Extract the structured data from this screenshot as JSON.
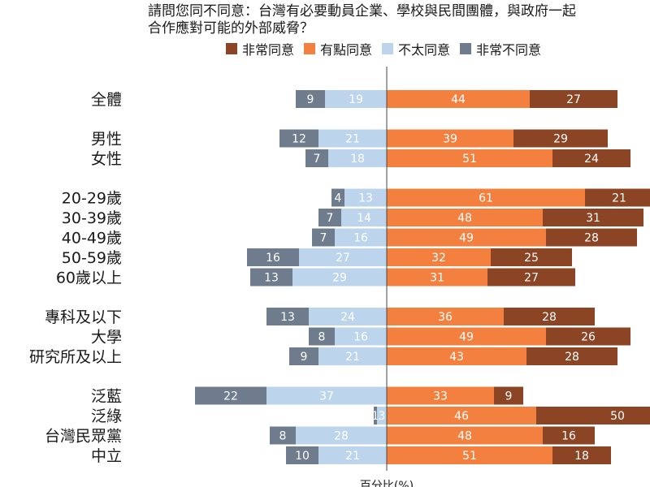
{
  "title_lines": [
    "請問您同不同意：台灣有必要動員企業、學校與民間團體，與政府一起",
    "合作應對可能的外部威脅？"
  ],
  "chart_data": {
    "type": "bar",
    "orientation": "horizontal-diverging",
    "xlabel": "百分比(%)",
    "legend": [
      {
        "name": "非常同意",
        "color": "#8c4524"
      },
      {
        "name": "有點同意",
        "color": "#f4803f"
      },
      {
        "name": "不太同意",
        "color": "#bcd4ec"
      },
      {
        "name": "非常不同意",
        "color": "#6e7c8e"
      }
    ],
    "groups": [
      {
        "rows": [
          {
            "label": "全體",
            "strong_disagree": 9,
            "disagree": 19,
            "agree": 44,
            "strong_agree": 27
          }
        ]
      },
      {
        "rows": [
          {
            "label": "男性",
            "strong_disagree": 12,
            "disagree": 21,
            "agree": 39,
            "strong_agree": 29
          },
          {
            "label": "女性",
            "strong_disagree": 7,
            "disagree": 18,
            "agree": 51,
            "strong_agree": 24
          }
        ]
      },
      {
        "rows": [
          {
            "label": "20-29歲",
            "strong_disagree": 4,
            "disagree": 13,
            "agree": 61,
            "strong_agree": 21
          },
          {
            "label": "30-39歲",
            "strong_disagree": 7,
            "disagree": 14,
            "agree": 48,
            "strong_agree": 31
          },
          {
            "label": "40-49歲",
            "strong_disagree": 7,
            "disagree": 16,
            "agree": 49,
            "strong_agree": 28
          },
          {
            "label": "50-59歲",
            "strong_disagree": 16,
            "disagree": 27,
            "agree": 32,
            "strong_agree": 25
          },
          {
            "label": "60歲以上",
            "strong_disagree": 13,
            "disagree": 29,
            "agree": 31,
            "strong_agree": 27
          }
        ]
      },
      {
        "rows": [
          {
            "label": "專科及以下",
            "strong_disagree": 13,
            "disagree": 24,
            "agree": 36,
            "strong_agree": 28
          },
          {
            "label": "大學",
            "strong_disagree": 8,
            "disagree": 16,
            "agree": 49,
            "strong_agree": 26
          },
          {
            "label": "研究所及以上",
            "strong_disagree": 9,
            "disagree": 21,
            "agree": 43,
            "strong_agree": 28
          }
        ]
      },
      {
        "rows": [
          {
            "label": "泛藍",
            "strong_disagree": 22,
            "disagree": 37,
            "agree": 33,
            "strong_agree": 9
          },
          {
            "label": "泛綠",
            "strong_disagree": 1,
            "disagree": 3,
            "agree": 46,
            "strong_agree": 50
          },
          {
            "label": "台灣民眾黨",
            "strong_disagree": 8,
            "disagree": 28,
            "agree": 48,
            "strong_agree": 16
          },
          {
            "label": "中立",
            "strong_disagree": 10,
            "disagree": 21,
            "agree": 51,
            "strong_agree": 18
          }
        ]
      }
    ],
    "grid": false
  }
}
